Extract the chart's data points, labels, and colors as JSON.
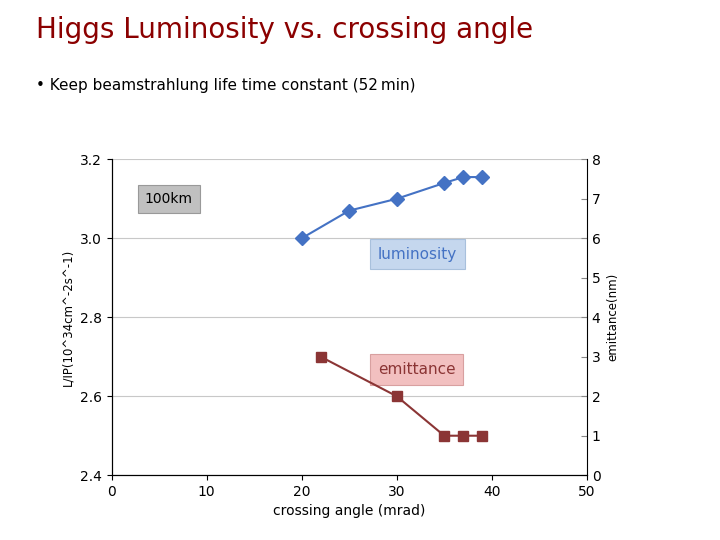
{
  "title": "Higgs Luminosity vs. crossing angle",
  "subtitle": "• Keep beamstrahlung life time constant (52 min)",
  "title_color": "#8B0000",
  "subtitle_color": "#000000",
  "xlabel": "crossing angle (mrad)",
  "ylabel_left": "L/IP(10^34cm^-2s^-1)",
  "ylabel_right": "emittance(nm)",
  "xlim": [
    0,
    50
  ],
  "ylim_left": [
    2.4,
    3.2
  ],
  "ylim_right": [
    0,
    8
  ],
  "yticks_left": [
    2.4,
    2.6,
    2.8,
    3.0,
    3.2
  ],
  "yticks_right": [
    0,
    1,
    2,
    3,
    4,
    5,
    6,
    7,
    8
  ],
  "xticks": [
    0,
    10,
    20,
    30,
    40,
    50
  ],
  "luminosity_x": [
    20,
    25,
    30,
    35,
    37,
    39
  ],
  "luminosity_y": [
    3.0,
    3.07,
    3.1,
    3.14,
    3.155,
    3.155
  ],
  "emittance_x": [
    22,
    30,
    35,
    37,
    39
  ],
  "emittance_y_nm": [
    3.0,
    2.0,
    1.0,
    1.0,
    1.0
  ],
  "lumi_color": "#4472C4",
  "emit_color": "#8B3535",
  "label_100km": "100km",
  "label_lumi": "luminosity",
  "label_emit": "emittance",
  "bg_plot": "#FFFFFF",
  "bg_figure": "#FFFFFF",
  "grid_color": "#C8C8C8"
}
